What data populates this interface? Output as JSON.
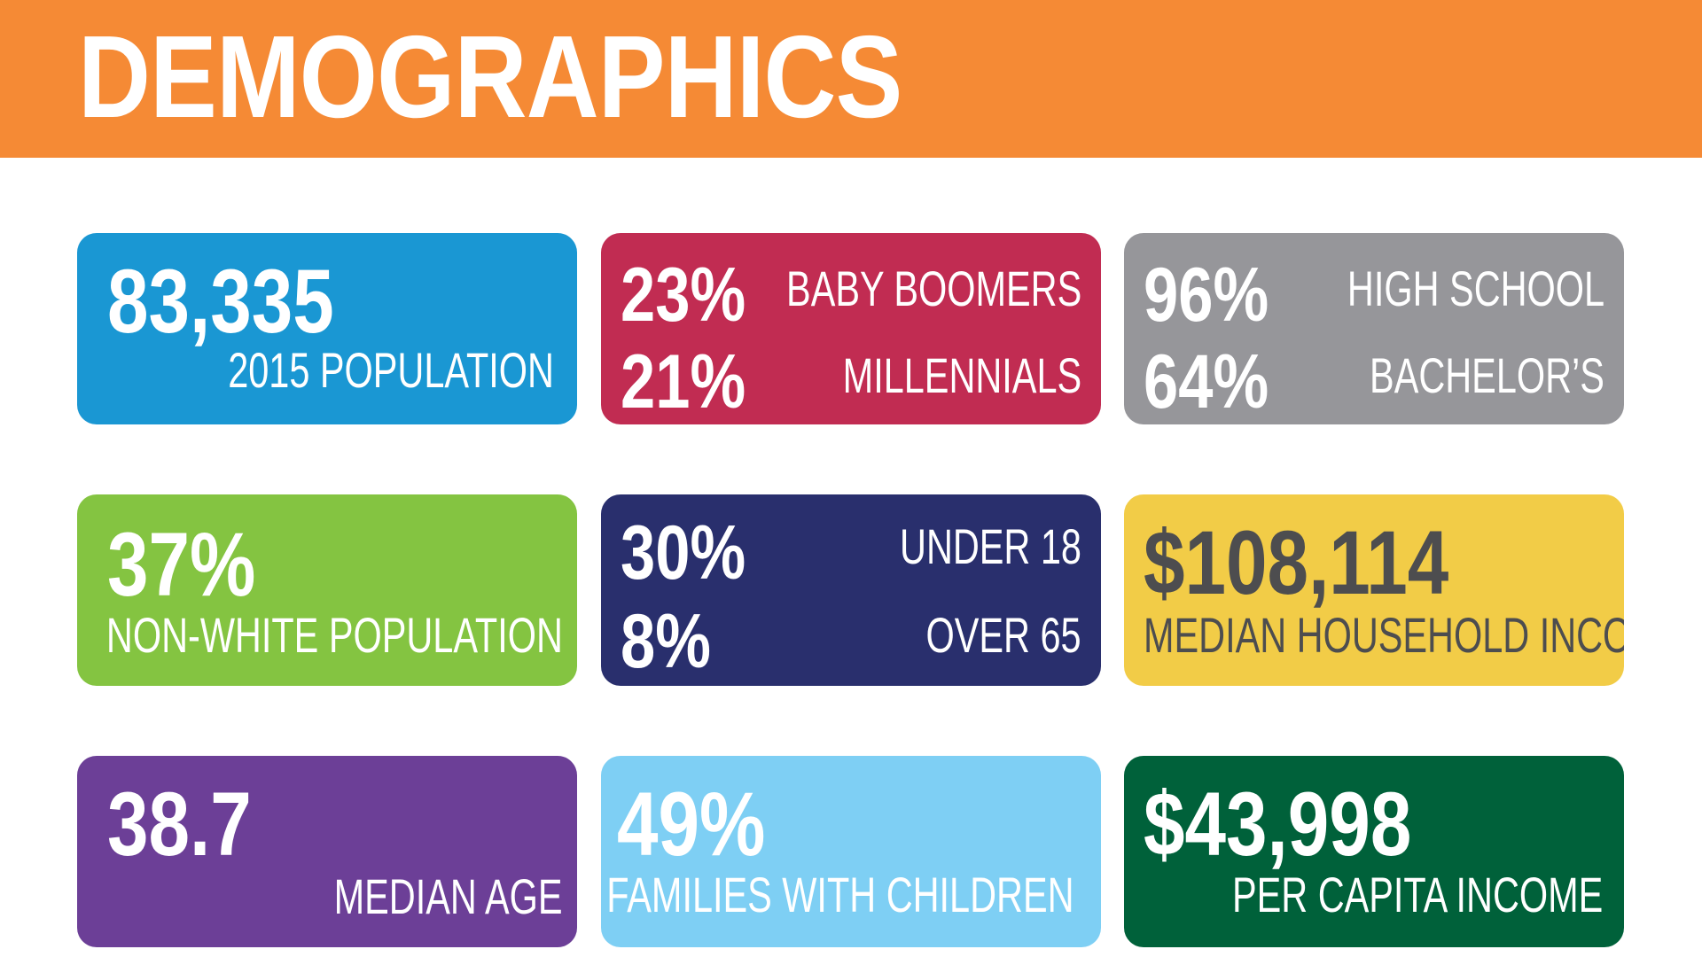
{
  "header": {
    "title": "DEMOGRAPHICS"
  },
  "cards": {
    "population": {
      "value": "83,335",
      "label": "2015 POPULATION",
      "color": "#1a97d3"
    },
    "generations": {
      "value_1": "23%",
      "label_1": "BABY BOOMERS",
      "value_2": "21%",
      "label_2": "MILLENNIALS",
      "color": "#c12c52"
    },
    "education": {
      "value_1": "96%",
      "label_1": "HIGH SCHOOL",
      "value_2": "64%",
      "label_2": "BACHELOR’S",
      "color": "#96969a"
    },
    "non_white": {
      "value": "37%",
      "label": "NON-WHITE POPULATION",
      "color": "#84c441"
    },
    "age_groups": {
      "value_1": "30%",
      "label_1": "UNDER 18",
      "value_2": "8%",
      "label_2": "OVER 65",
      "color": "#292f6d"
    },
    "household_income": {
      "value": "$108,114",
      "label": "MEDIAN HOUSEHOLD INCOME",
      "color": "#f2cc47"
    },
    "median_age": {
      "value": "38.7",
      "label": "MEDIAN AGE",
      "color": "#6c3f97"
    },
    "families": {
      "value": "49%",
      "label": "FAMILIES WITH CHILDREN",
      "color": "#7ecff4"
    },
    "per_capita_income": {
      "value": "$43,998",
      "label": "PER CAPITA INCOME",
      "color": "#00613a"
    }
  },
  "colors": {
    "header": "#f58a35",
    "background": "#ffffff"
  }
}
